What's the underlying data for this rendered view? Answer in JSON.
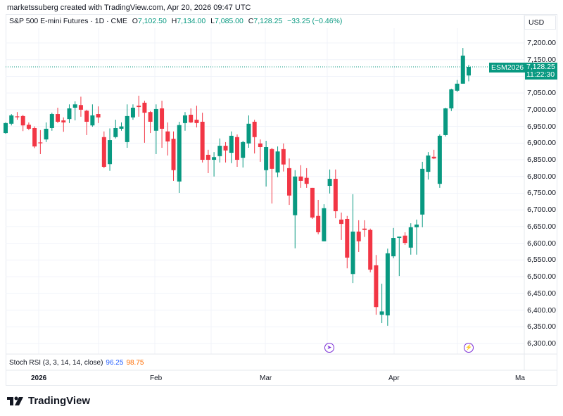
{
  "header": {
    "attribution": "marketssuberg created with TradingView.com, Apr 20, 2026 09:47 UTC"
  },
  "legend": {
    "symbol_name": "S&P 500 E-mini Futures · 1D · CME",
    "open_label": "O",
    "open": "7,102.50",
    "high_label": "H",
    "high": "7,134.00",
    "low_label": "L",
    "low": "7,085.00",
    "close_label": "C",
    "close": "7,128.25",
    "change": "−33.25 (−0.46%)"
  },
  "price_axis": {
    "currency": "USD",
    "ticker": "ESM2026",
    "last_price": "7,128.25",
    "countdown": "11:22:30",
    "labels": [
      "7,200.00",
      "7,150.00",
      "7,050.00",
      "7,000.00",
      "6,950.00",
      "6,900.00",
      "6,850.00",
      "6,800.00",
      "6,750.00",
      "6,700.00",
      "6,650.00",
      "6,600.00",
      "6,550.00",
      "6,500.00",
      "6,450.00",
      "6,400.00",
      "6,350.00",
      "6,300.00"
    ]
  },
  "time_axis": {
    "labels": [
      "2026",
      "Feb",
      "Mar",
      "Apr",
      "Ma"
    ]
  },
  "indicator": {
    "name": "Stoch RSI (3, 3, 14, 14, close)",
    "k": "96.25",
    "d": "98.75",
    "k_color": "#2962ff",
    "d_color": "#ff6d00"
  },
  "events": [
    {
      "icon": "dividend-arrow-icon"
    },
    {
      "icon": "lightning-icon"
    }
  ],
  "logo": "TradingView",
  "colors": {
    "up": "#089981",
    "down": "#f23645",
    "event": "#7b2cd6"
  },
  "chart_data": {
    "type": "candlestick",
    "ylim": [
      6270,
      7230
    ],
    "y_ticks": [
      7200,
      7150,
      7100,
      7050,
      7000,
      6950,
      6900,
      6850,
      6800,
      6750,
      6700,
      6650,
      6600,
      6550,
      6500,
      6450,
      6400,
      6350,
      6300
    ],
    "last_price": 7128.25,
    "grid": true,
    "ohlc": [
      [
        6930,
        6962,
        6928,
        6960
      ],
      [
        6958,
        6987,
        6953,
        6983
      ],
      [
        6980,
        6993,
        6970,
        6978
      ],
      [
        6981,
        6985,
        6936,
        6953
      ],
      [
        6955,
        6962,
        6939,
        6943
      ],
      [
        6945,
        6950,
        6885,
        6890
      ],
      [
        6902,
        6939,
        6867,
        6900
      ],
      [
        6911,
        6962,
        6903,
        6943
      ],
      [
        6945,
        6991,
        6937,
        6987
      ],
      [
        6987,
        7006,
        6960,
        6964
      ],
      [
        6968,
        6977,
        6934,
        6962
      ],
      [
        6972,
        7016,
        6960,
        7004
      ],
      [
        7006,
        7025,
        6968,
        7016
      ],
      [
        7014,
        7039,
        6979,
        7000
      ],
      [
        6997,
        7000,
        6924,
        6964
      ],
      [
        6953,
        7016,
        6949,
        6983
      ],
      [
        6987,
        7010,
        6960,
        6977
      ],
      [
        6918,
        6935,
        6825,
        6829
      ],
      [
        6837,
        6944,
        6817,
        6909
      ],
      [
        6918,
        6970,
        6914,
        6945
      ],
      [
        6943,
        6962,
        6937,
        6950
      ],
      [
        6903,
        7016,
        6886,
        6981
      ],
      [
        6977,
        7016,
        6970,
        7006
      ],
      [
        7012,
        7042,
        6979,
        7008
      ],
      [
        7021,
        7027,
        6901,
        6991
      ],
      [
        6993,
        6996,
        6930,
        6964
      ],
      [
        6937,
        7016,
        6867,
        7002
      ],
      [
        7004,
        7027,
        6886,
        6943
      ],
      [
        6935,
        6962,
        6863,
        6905
      ],
      [
        6913,
        6935,
        6787,
        6819
      ],
      [
        6785,
        6964,
        6751,
        6954
      ],
      [
        6960,
        6993,
        6937,
        6983
      ],
      [
        6985,
        7004,
        6960,
        6962
      ],
      [
        6970,
        7012,
        6947,
        6960
      ],
      [
        6964,
        6991,
        6842,
        6850
      ],
      [
        6865,
        6880,
        6810,
        6850
      ],
      [
        6850,
        6873,
        6800,
        6858
      ],
      [
        6861,
        6914,
        6842,
        6892
      ],
      [
        6892,
        6903,
        6842,
        6878
      ],
      [
        6871,
        6935,
        6840,
        6922
      ],
      [
        6918,
        6926,
        6829,
        6850
      ],
      [
        6856,
        6907,
        6827,
        6903
      ],
      [
        6899,
        6983,
        6886,
        6958
      ],
      [
        6964,
        6970,
        6869,
        6918
      ],
      [
        6899,
        6911,
        6844,
        6888
      ],
      [
        6819,
        6907,
        6770,
        6888
      ],
      [
        6882,
        6886,
        6719,
        6823
      ],
      [
        6812,
        6890,
        6798,
        6875
      ],
      [
        6882,
        6899,
        6815,
        6836
      ],
      [
        6825,
        6854,
        6715,
        6743
      ],
      [
        6684,
        6819,
        6585,
        6800
      ],
      [
        6800,
        6834,
        6766,
        6787
      ],
      [
        6796,
        6825,
        6766,
        6778
      ],
      [
        6766,
        6766,
        6673,
        6677
      ],
      [
        6682,
        6730,
        6627,
        6633
      ],
      [
        6606,
        6717,
        6606,
        6705
      ],
      [
        6772,
        6821,
        6749,
        6793
      ],
      [
        6793,
        6821,
        6675,
        6696
      ],
      [
        6671,
        6692,
        6610,
        6658
      ],
      [
        6673,
        6682,
        6525,
        6557
      ],
      [
        6508,
        6747,
        6481,
        6635
      ],
      [
        6635,
        6669,
        6574,
        6606
      ],
      [
        6644,
        6669,
        6619,
        6640
      ],
      [
        6640,
        6644,
        6513,
        6521
      ],
      [
        6534,
        6565,
        6386,
        6409
      ],
      [
        6386,
        6479,
        6361,
        6396
      ],
      [
        6384,
        6584,
        6353,
        6570
      ],
      [
        6561,
        6646,
        6555,
        6616
      ],
      [
        6616,
        6620,
        6502,
        6620
      ],
      [
        6623,
        6633,
        6595,
        6601
      ],
      [
        6587,
        6660,
        6566,
        6648
      ],
      [
        6648,
        6671,
        6566,
        6656
      ],
      [
        6686,
        6844,
        6648,
        6823
      ],
      [
        6814,
        6873,
        6791,
        6863
      ],
      [
        6859,
        6880,
        6852,
        6854
      ],
      [
        6778,
        6926,
        6766,
        6922
      ],
      [
        6924,
        7006,
        6920,
        7004
      ],
      [
        7004,
        7063,
        6996,
        7061
      ],
      [
        7057,
        7089,
        7053,
        7078
      ],
      [
        7078,
        7185,
        7078,
        7162
      ],
      [
        7102.5,
        7134,
        7085,
        7128.25
      ]
    ]
  }
}
